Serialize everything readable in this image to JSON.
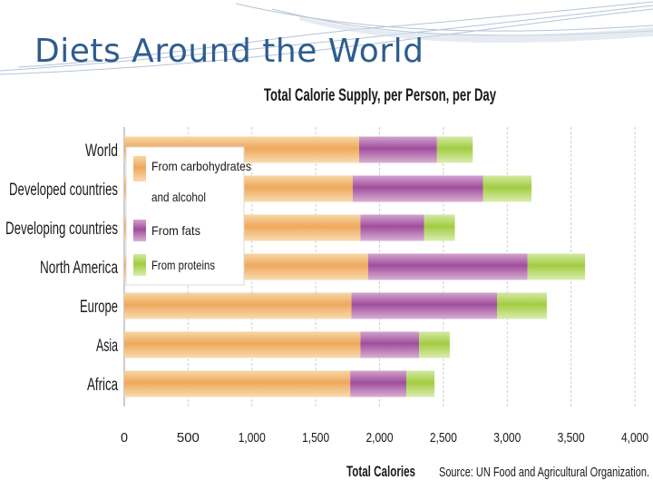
{
  "slide": {
    "title": "Diets Around the World"
  },
  "chart_data": {
    "type": "bar",
    "orientation": "horizontal",
    "stacked": true,
    "title": "Total Calorie Supply, per Person, per Day",
    "xlabel": "Total Calories",
    "source": "Source: UN Food and Agricultural Organization.",
    "xlim": [
      0,
      4000
    ],
    "xticks": [
      "0",
      "500",
      "1,000",
      "1,500",
      "2,000",
      "2,500",
      "3,000",
      "3,500",
      "4,000"
    ],
    "grid": true,
    "legend_position": "top-left",
    "categories": [
      "World",
      "Developed countries",
      "Developing countries",
      "North America",
      "Europe",
      "Asia",
      "Africa"
    ],
    "series": [
      {
        "name": "From carbohydrates and alcohol",
        "color": "#f0a85a",
        "values": [
          1840,
          1790,
          1850,
          1910,
          1780,
          1850,
          1770
        ]
      },
      {
        "name": "From fats",
        "color": "#a4529e",
        "values": [
          610,
          1020,
          500,
          1250,
          1140,
          460,
          440
        ]
      },
      {
        "name": "From proteins",
        "color": "#a6cf45",
        "values": [
          280,
          380,
          240,
          450,
          390,
          240,
          220
        ]
      }
    ]
  }
}
